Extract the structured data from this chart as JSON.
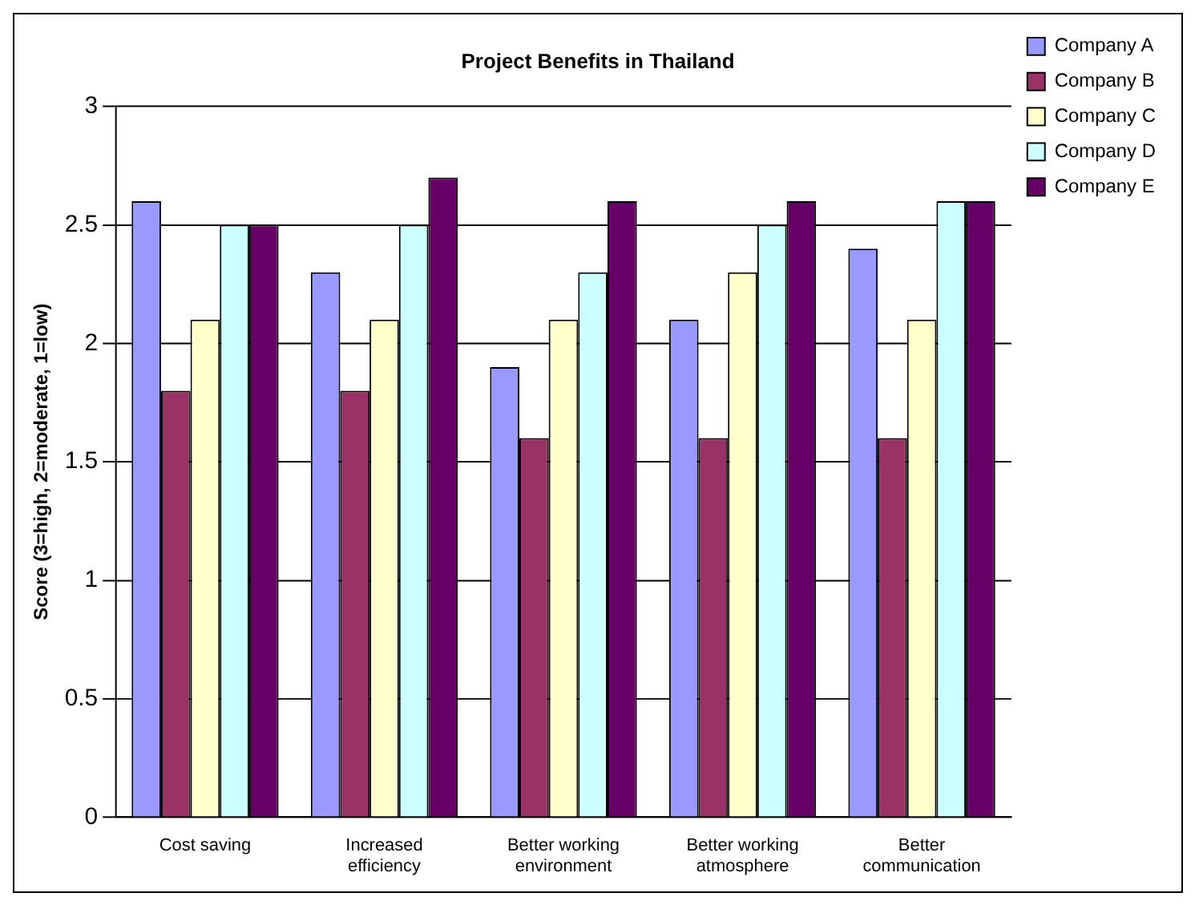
{
  "chart_data": {
    "type": "bar",
    "title": "Project Benefits in Thailand",
    "ylabel": "Score (3=high, 2=moderate, 1=low)",
    "categories": [
      "Cost saving",
      "Increased efficiency",
      "Better working environment",
      "Better working atmosphere",
      "Better communication"
    ],
    "series": [
      {
        "name": "Company A",
        "color": "#9999ff",
        "values": [
          2.6,
          2.3,
          1.9,
          2.1,
          2.4
        ]
      },
      {
        "name": "Company B",
        "color": "#993366",
        "values": [
          1.8,
          1.8,
          1.6,
          1.6,
          1.6
        ]
      },
      {
        "name": "Company C",
        "color": "#ffffcc",
        "values": [
          2.1,
          2.1,
          2.1,
          2.3,
          2.1
        ]
      },
      {
        "name": "Company D",
        "color": "#ccffff",
        "values": [
          2.5,
          2.5,
          2.3,
          2.5,
          2.6
        ]
      },
      {
        "name": "Company E",
        "color": "#660066",
        "values": [
          2.5,
          2.7,
          2.6,
          2.6,
          2.6
        ]
      }
    ],
    "ylim": [
      0,
      3
    ],
    "yticks": [
      0,
      0.5,
      1,
      1.5,
      2,
      2.5,
      3
    ],
    "grid": "y",
    "legend": "top right"
  }
}
